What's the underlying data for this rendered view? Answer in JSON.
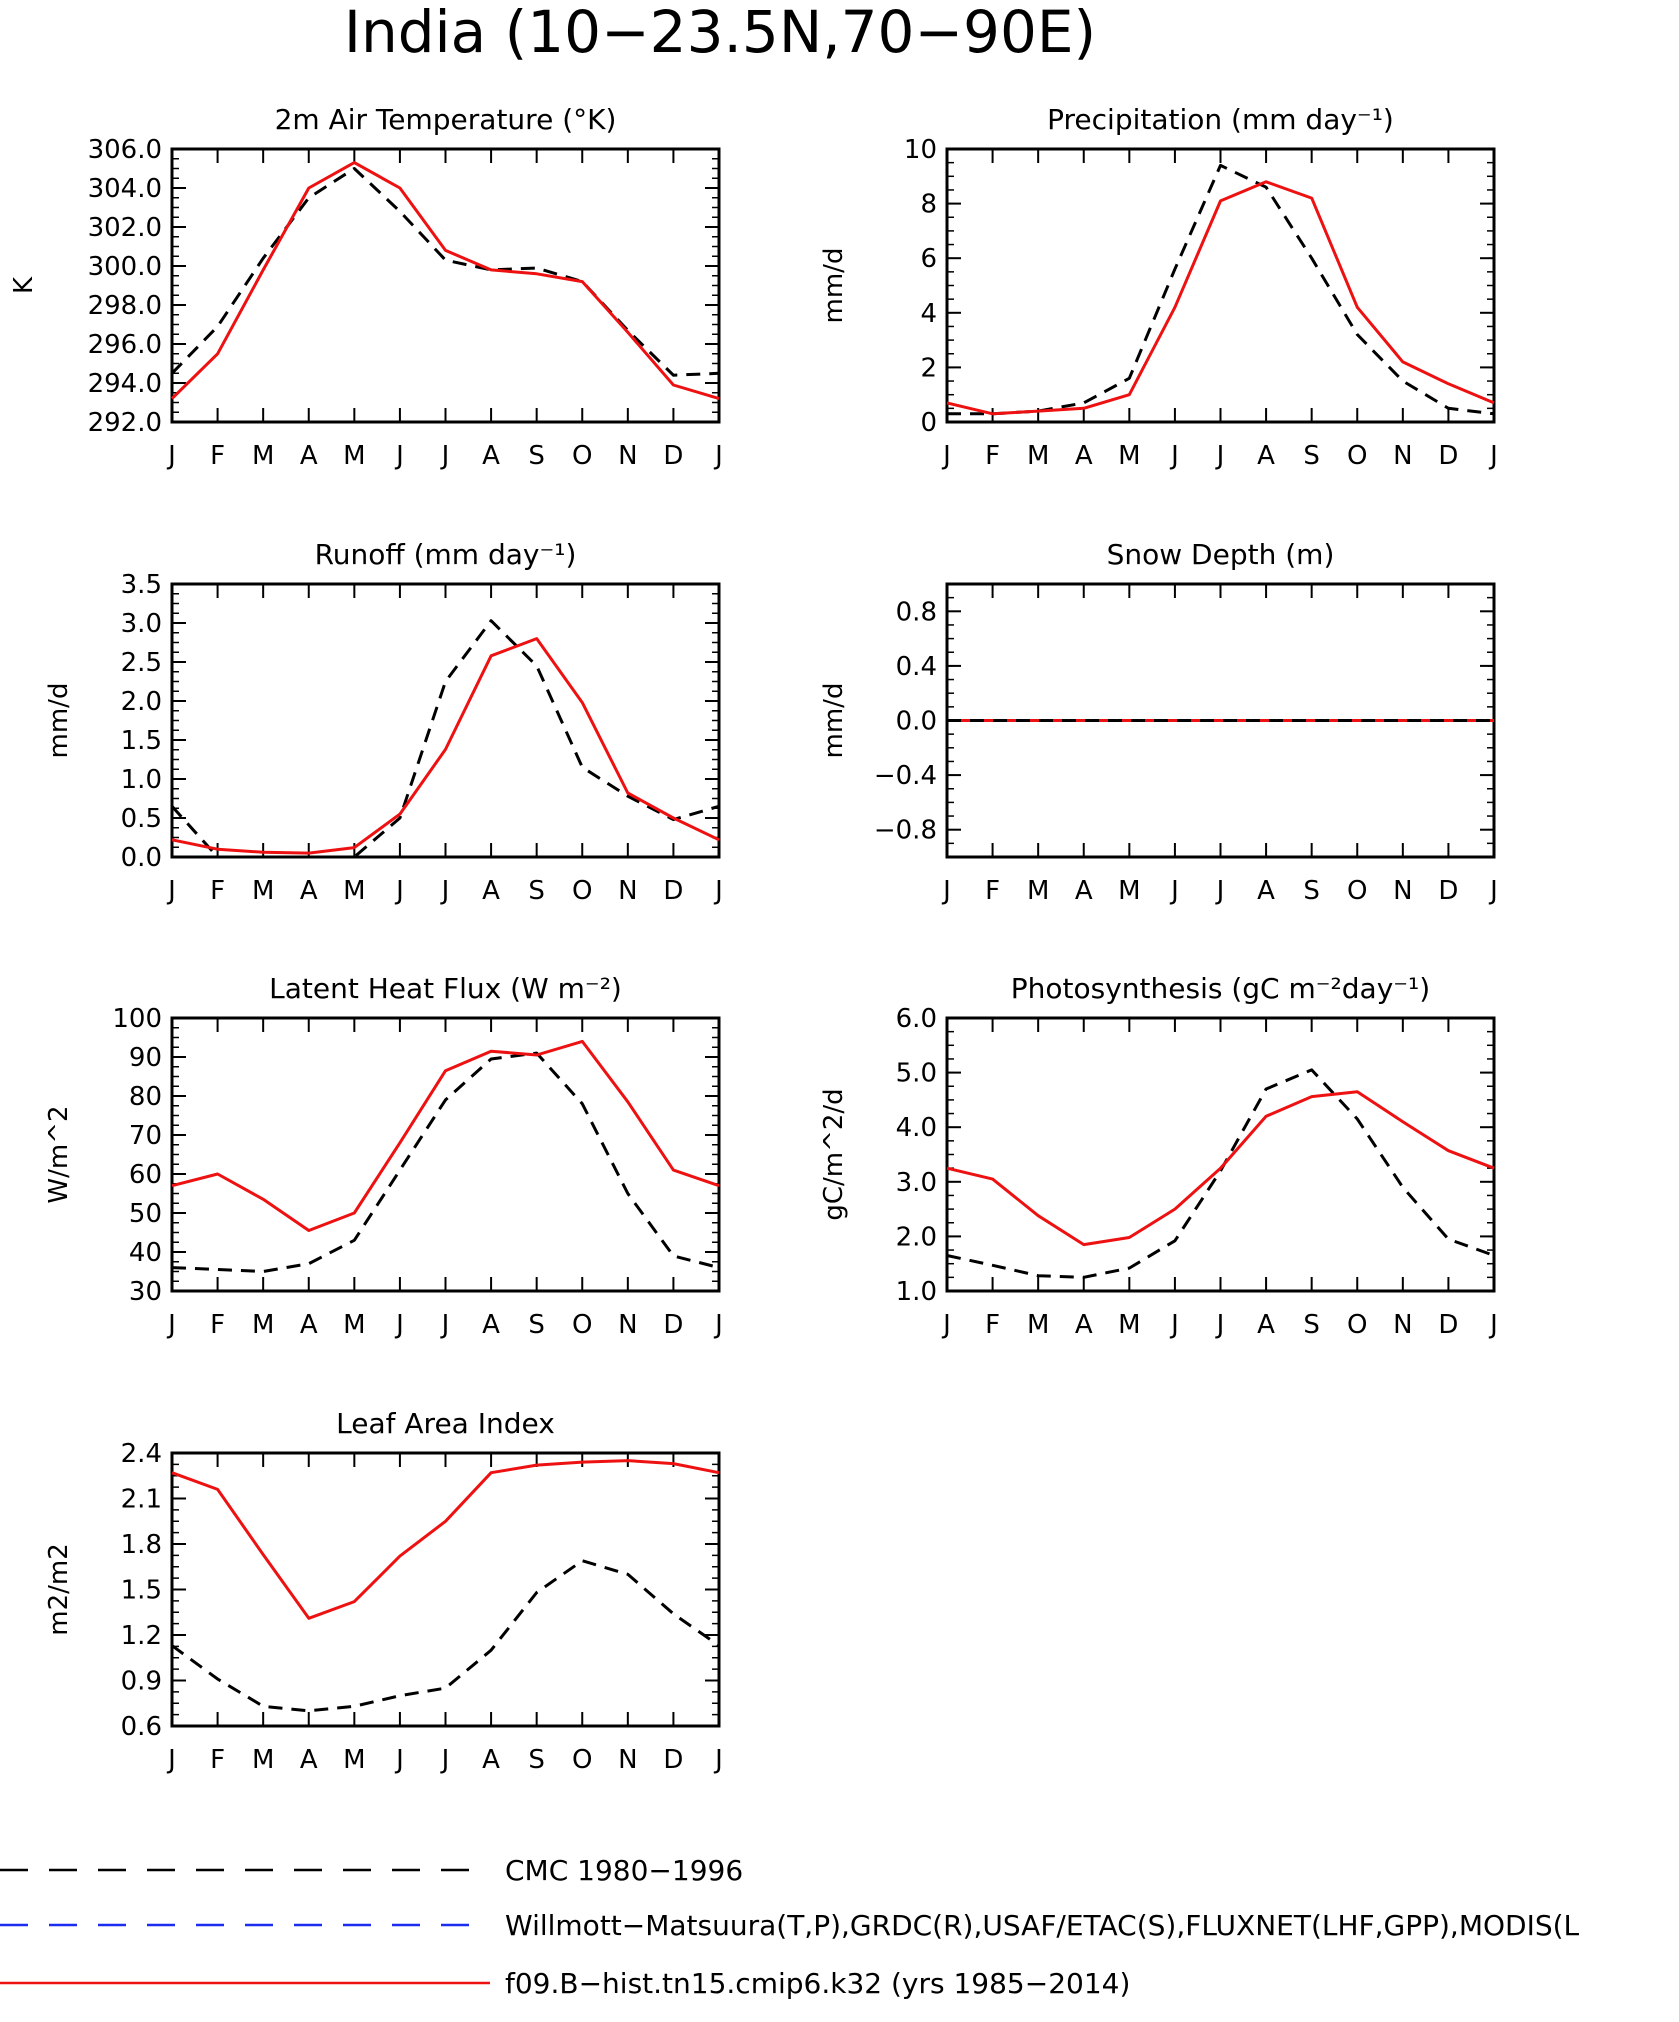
{
  "page_title": "India (10−23.5N,70−90E)",
  "months": [
    "J",
    "F",
    "M",
    "A",
    "M",
    "J",
    "J",
    "A",
    "S",
    "O",
    "N",
    "D",
    "J"
  ],
  "legend": [
    {
      "label": "CMC 1980−1996",
      "color": "#000000",
      "dash": true
    },
    {
      "label": "Willmott−Matsuura(T,P),GRDC(R),USAF/ETAC(S),FLUXNET(LHF,GPP),MODIS(L",
      "color": "#1c2cf0",
      "dash": true
    },
    {
      "label": "f09.B−hist.tn15.cmip6.k32 (yrs 1985−2014)",
      "color": "#ee1111",
      "dash": false
    }
  ],
  "chart_data": [
    {
      "type": "line",
      "title": "2m Air Temperature (°K)",
      "ylabel": "K",
      "ylim": [
        292,
        306
      ],
      "yticks": [
        292,
        294,
        296,
        298,
        300,
        302,
        304,
        306
      ],
      "ytick_labels": [
        "292.0",
        "294.0",
        "296.0",
        "298.0",
        "300.0",
        "302.0",
        "304.0",
        "306.0"
      ],
      "series": [
        {
          "color": "#000000",
          "dash": true,
          "values": [
            294.5,
            296.9,
            300.4,
            303.5,
            305.0,
            302.8,
            300.3,
            299.8,
            299.9,
            299.2,
            296.7,
            294.4,
            294.5
          ]
        },
        {
          "color": "#ee1111",
          "dash": false,
          "values": [
            293.2,
            295.5,
            299.8,
            304.0,
            305.3,
            304.0,
            300.8,
            299.8,
            299.6,
            299.2,
            296.6,
            293.9,
            293.2
          ]
        }
      ]
    },
    {
      "type": "line",
      "title": "Precipitation (mm day⁻¹)",
      "ylabel": "mm/d",
      "ylim": [
        0,
        10
      ],
      "yticks": [
        0,
        2,
        4,
        6,
        8,
        10
      ],
      "ytick_labels": [
        "0",
        "2",
        "4",
        "6",
        "8",
        "10"
      ],
      "series": [
        {
          "color": "#000000",
          "dash": true,
          "values": [
            0.3,
            0.3,
            0.4,
            0.7,
            1.6,
            5.6,
            9.4,
            8.6,
            6.0,
            3.2,
            1.5,
            0.5,
            0.3
          ]
        },
        {
          "color": "#ee1111",
          "dash": false,
          "values": [
            0.7,
            0.3,
            0.4,
            0.5,
            1.0,
            4.2,
            8.1,
            8.8,
            8.2,
            4.2,
            2.2,
            1.4,
            0.7
          ]
        }
      ]
    },
    {
      "type": "line",
      "title": "Runoff (mm day⁻¹)",
      "ylabel": "mm/d",
      "ylim": [
        0,
        3.5
      ],
      "yticks": [
        0,
        0.5,
        1.0,
        1.5,
        2.0,
        2.5,
        3.0,
        3.5
      ],
      "ytick_labels": [
        "0.0",
        "0.5",
        "1.0",
        "1.5",
        "2.0",
        "2.5",
        "3.0",
        "3.5"
      ],
      "series": [
        {
          "color": "#000000",
          "dash": true,
          "values": [
            0.65,
            0.0,
            0.0,
            0.0,
            0.0,
            0.5,
            2.25,
            3.03,
            2.45,
            1.15,
            0.78,
            0.48,
            0.65
          ]
        },
        {
          "color": "#ee1111",
          "dash": false,
          "values": [
            0.22,
            0.1,
            0.06,
            0.05,
            0.12,
            0.55,
            1.38,
            2.58,
            2.8,
            1.98,
            0.82,
            0.5,
            0.22
          ]
        }
      ]
    },
    {
      "type": "line",
      "title": "Snow Depth (m)",
      "ylabel": "mm/d",
      "ylim": [
        -1.0,
        1.0
      ],
      "yticks": [
        -0.8,
        -0.4,
        0.0,
        0.4,
        0.8
      ],
      "ytick_labels": [
        "−0.8",
        "−0.4",
        "0.0",
        "0.4",
        "0.8"
      ],
      "series": [
        {
          "color": "#ee1111",
          "dash": false,
          "values": [
            0,
            0,
            0,
            0,
            0,
            0,
            0,
            0,
            0,
            0,
            0,
            0,
            0
          ]
        },
        {
          "color": "#000000",
          "dash": true,
          "values": [
            0,
            0,
            0,
            0,
            0,
            0,
            0,
            0,
            0,
            0,
            0,
            0,
            0
          ]
        }
      ]
    },
    {
      "type": "line",
      "title": "Latent Heat Flux (W m⁻²)",
      "ylabel": "W/m^2",
      "ylim": [
        30,
        100
      ],
      "yticks": [
        30,
        40,
        50,
        60,
        70,
        80,
        90,
        100
      ],
      "ytick_labels": [
        "30",
        "40",
        "50",
        "60",
        "70",
        "80",
        "90",
        "100"
      ],
      "series": [
        {
          "color": "#000000",
          "dash": true,
          "values": [
            36,
            35.5,
            35,
            37,
            43,
            61,
            79,
            89.5,
            91,
            78,
            55,
            39,
            36
          ]
        },
        {
          "color": "#ee1111",
          "dash": false,
          "values": [
            57,
            60,
            53.5,
            45.5,
            50,
            68,
            86.5,
            91.5,
            90.5,
            94,
            78.5,
            61,
            57
          ]
        }
      ]
    },
    {
      "type": "line",
      "title": "Photosynthesis (gC m⁻²day⁻¹)",
      "ylabel": "gC/m^2/d",
      "ylim": [
        1.0,
        6.0
      ],
      "yticks": [
        1.0,
        2.0,
        3.0,
        4.0,
        5.0,
        6.0
      ],
      "ytick_labels": [
        "1.0",
        "2.0",
        "3.0",
        "4.0",
        "5.0",
        "6.0"
      ],
      "series": [
        {
          "color": "#000000",
          "dash": true,
          "values": [
            1.65,
            1.47,
            1.28,
            1.25,
            1.42,
            1.92,
            3.2,
            4.7,
            5.05,
            4.15,
            2.9,
            1.95,
            1.65
          ]
        },
        {
          "color": "#ee1111",
          "dash": false,
          "values": [
            3.25,
            3.05,
            2.38,
            1.85,
            1.98,
            2.5,
            3.25,
            4.2,
            4.56,
            4.65,
            4.1,
            3.57,
            3.25
          ]
        }
      ]
    },
    {
      "type": "line",
      "title": "Leaf Area Index",
      "ylabel": "m2/m2",
      "ylim": [
        0.6,
        2.4
      ],
      "yticks": [
        0.6,
        0.9,
        1.2,
        1.5,
        1.8,
        2.1,
        2.4
      ],
      "ytick_labels": [
        "0.6",
        "0.9",
        "1.2",
        "1.5",
        "1.8",
        "2.1",
        "2.4"
      ],
      "series": [
        {
          "color": "#000000",
          "dash": true,
          "values": [
            1.13,
            0.91,
            0.73,
            0.7,
            0.73,
            0.8,
            0.85,
            1.1,
            1.48,
            1.69,
            1.6,
            1.34,
            1.13
          ]
        },
        {
          "color": "#ee1111",
          "dash": false,
          "values": [
            2.27,
            2.16,
            1.73,
            1.31,
            1.42,
            1.72,
            1.95,
            2.27,
            2.32,
            2.34,
            2.35,
            2.33,
            2.27
          ]
        }
      ]
    }
  ]
}
